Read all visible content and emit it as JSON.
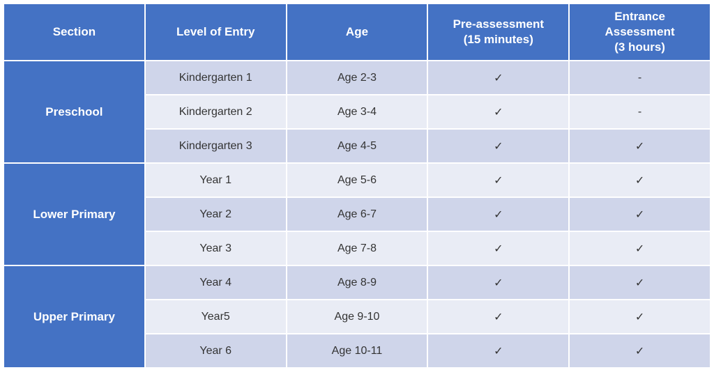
{
  "table": {
    "columns": [
      {
        "label": "Section"
      },
      {
        "label": "Level of Entry"
      },
      {
        "label": "Age"
      },
      {
        "label": "Pre-assessment\n(15 minutes)"
      },
      {
        "label": "Entrance\nAssessment\n(3 hours)"
      }
    ],
    "sections": [
      {
        "name": "Preschool",
        "rows": [
          {
            "level": "Kindergarten 1",
            "age": "Age 2-3",
            "pre": "✓",
            "entrance": "-"
          },
          {
            "level": "Kindergarten 2",
            "age": "Age 3-4",
            "pre": "✓",
            "entrance": "-"
          },
          {
            "level": "Kindergarten 3",
            "age": "Age 4-5",
            "pre": "✓",
            "entrance": "✓"
          }
        ]
      },
      {
        "name": "Lower Primary",
        "rows": [
          {
            "level": "Year 1",
            "age": "Age 5-6",
            "pre": "✓",
            "entrance": "✓"
          },
          {
            "level": "Year 2",
            "age": "Age 6-7",
            "pre": "✓",
            "entrance": "✓"
          },
          {
            "level": "Year 3",
            "age": "Age 7-8",
            "pre": "✓",
            "entrance": "✓"
          }
        ]
      },
      {
        "name": "Upper Primary",
        "rows": [
          {
            "level": "Year 4",
            "age": "Age 8-9",
            "pre": "✓",
            "entrance": "✓"
          },
          {
            "level": "Year5",
            "age": "Age 9-10",
            "pre": "✓",
            "entrance": "✓"
          },
          {
            "level": "Year 6",
            "age": "Age 10-11",
            "pre": "✓",
            "entrance": "✓"
          }
        ]
      }
    ],
    "header_bg": "#4472c4",
    "header_fg": "#ffffff",
    "row_light_bg": "#e9ecf5",
    "row_dark_bg": "#cfd5ea",
    "border_color": "#ffffff",
    "text_color": "#333333"
  }
}
